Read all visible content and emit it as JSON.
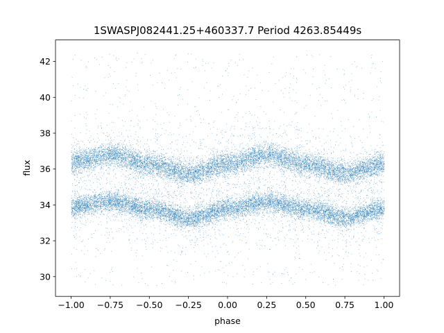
{
  "chart_data": {
    "type": "scatter",
    "title": "1SWASPJ082441.25+460337.7 Period 4263.85449s",
    "xlabel": "phase",
    "ylabel": "flux",
    "xlim": [
      -1.1,
      1.1
    ],
    "ylim": [
      28.9,
      43.2
    ],
    "x_ticks": [
      -1.0,
      -0.75,
      -0.5,
      -0.25,
      0.0,
      0.25,
      0.5,
      0.75,
      1.0
    ],
    "x_tick_labels": [
      "−1.00",
      "−0.75",
      "−0.50",
      "−0.25",
      "0.00",
      "0.25",
      "0.50",
      "0.75",
      "1.00"
    ],
    "y_ticks": [
      30,
      32,
      34,
      36,
      38,
      40,
      42
    ],
    "y_tick_labels": [
      "30",
      "32",
      "34",
      "36",
      "38",
      "40",
      "42"
    ],
    "grid": false,
    "legend": "none",
    "marker_color": "#1f77b4",
    "bands": [
      {
        "phase": [
          -1.0,
          -0.75,
          -0.5,
          -0.25,
          0.0,
          0.25,
          0.5,
          0.75,
          1.0
        ],
        "center": [
          36.4,
          36.8,
          36.3,
          35.8,
          36.3,
          36.8,
          36.3,
          35.8,
          36.3
        ],
        "spread": 0.45
      },
      {
        "phase": [
          -1.0,
          -0.75,
          -0.5,
          -0.25,
          0.0,
          0.25,
          0.5,
          0.75,
          1.0
        ],
        "center": [
          33.9,
          34.2,
          33.8,
          33.3,
          33.8,
          34.2,
          33.8,
          33.3,
          33.8
        ],
        "spread": 0.4
      }
    ],
    "scatter_range": [
      29.5,
      42.5
    ]
  }
}
